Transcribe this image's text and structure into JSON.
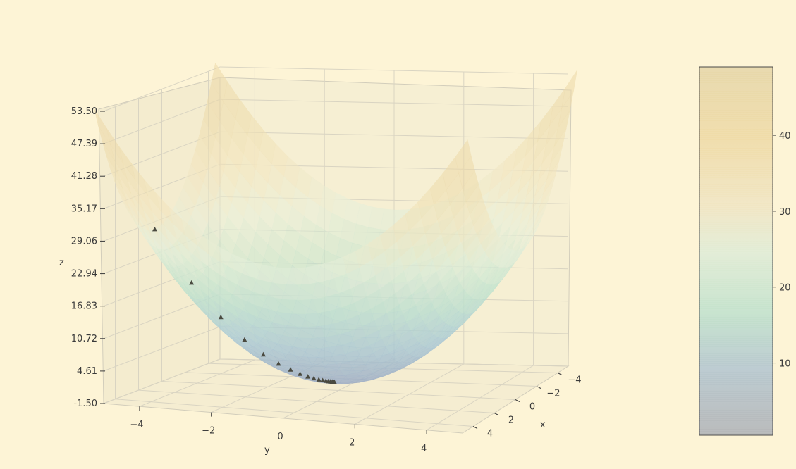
{
  "chart_data": {
    "type": "surface3d",
    "function": "z = x^2 + y^2",
    "xlabel": "x",
    "ylabel": "y",
    "zlabel": "z",
    "x_ticks": [
      "−4",
      "−2",
      "0",
      "2",
      "4"
    ],
    "x_tick_values": [
      -4,
      -2,
      0,
      2,
      4
    ],
    "y_ticks": [
      "−4",
      "−2",
      "0",
      "2",
      "4"
    ],
    "y_tick_values": [
      -4,
      -2,
      0,
      2,
      4
    ],
    "z_ticks": [
      "53.50",
      "47.39",
      "41.28",
      "35.17",
      "29.06",
      "22.94",
      "16.83",
      "10.72",
      "4.61",
      "-1.50"
    ],
    "z_tick_values": [
      53.5,
      47.39,
      41.28,
      35.17,
      29.06,
      22.94,
      16.83,
      10.72,
      4.61,
      -1.5
    ],
    "xlim": [
      -5,
      5
    ],
    "ylim": [
      -5,
      5
    ],
    "zlim": [
      -1.5,
      53.5
    ],
    "grid": true,
    "descent_path": {
      "marker": "triangle",
      "points": [
        {
          "x": 0,
          "y": -5.2,
          "z": 27.0
        },
        {
          "x": 0,
          "y": -4.16,
          "z": 17.3
        },
        {
          "x": 0,
          "y": -3.33,
          "z": 11.1
        },
        {
          "x": 0,
          "y": -2.66,
          "z": 7.1
        },
        {
          "x": 0,
          "y": -2.13,
          "z": 4.5
        },
        {
          "x": 0,
          "y": -1.7,
          "z": 2.9
        },
        {
          "x": 0,
          "y": -1.36,
          "z": 1.9
        },
        {
          "x": 0,
          "y": -1.09,
          "z": 1.2
        },
        {
          "x": 0,
          "y": -0.87,
          "z": 0.76
        },
        {
          "x": 0,
          "y": -0.7,
          "z": 0.49
        },
        {
          "x": 0,
          "y": -0.56,
          "z": 0.31
        },
        {
          "x": 0,
          "y": -0.45,
          "z": 0.2
        },
        {
          "x": 0,
          "y": -0.36,
          "z": 0.13
        },
        {
          "x": 0,
          "y": -0.29,
          "z": 0.08
        },
        {
          "x": 0,
          "y": -0.23,
          "z": 0.05
        },
        {
          "x": 0,
          "y": -0.18,
          "z": 0.03
        },
        {
          "x": 0,
          "y": -0.15,
          "z": 0.02
        },
        {
          "x": 0,
          "y": -0.12,
          "z": 0.01
        }
      ]
    },
    "colorbar": {
      "ticks": [
        "10",
        "20",
        "30",
        "40"
      ],
      "tick_values": [
        10,
        20,
        30,
        40
      ],
      "range": [
        0.5,
        49
      ]
    },
    "colormap": [
      "#9aa9c4",
      "#a9c9d6",
      "#bfe3cd",
      "#e7efdb",
      "#f3e4bc",
      "#ecd9a8"
    ]
  }
}
